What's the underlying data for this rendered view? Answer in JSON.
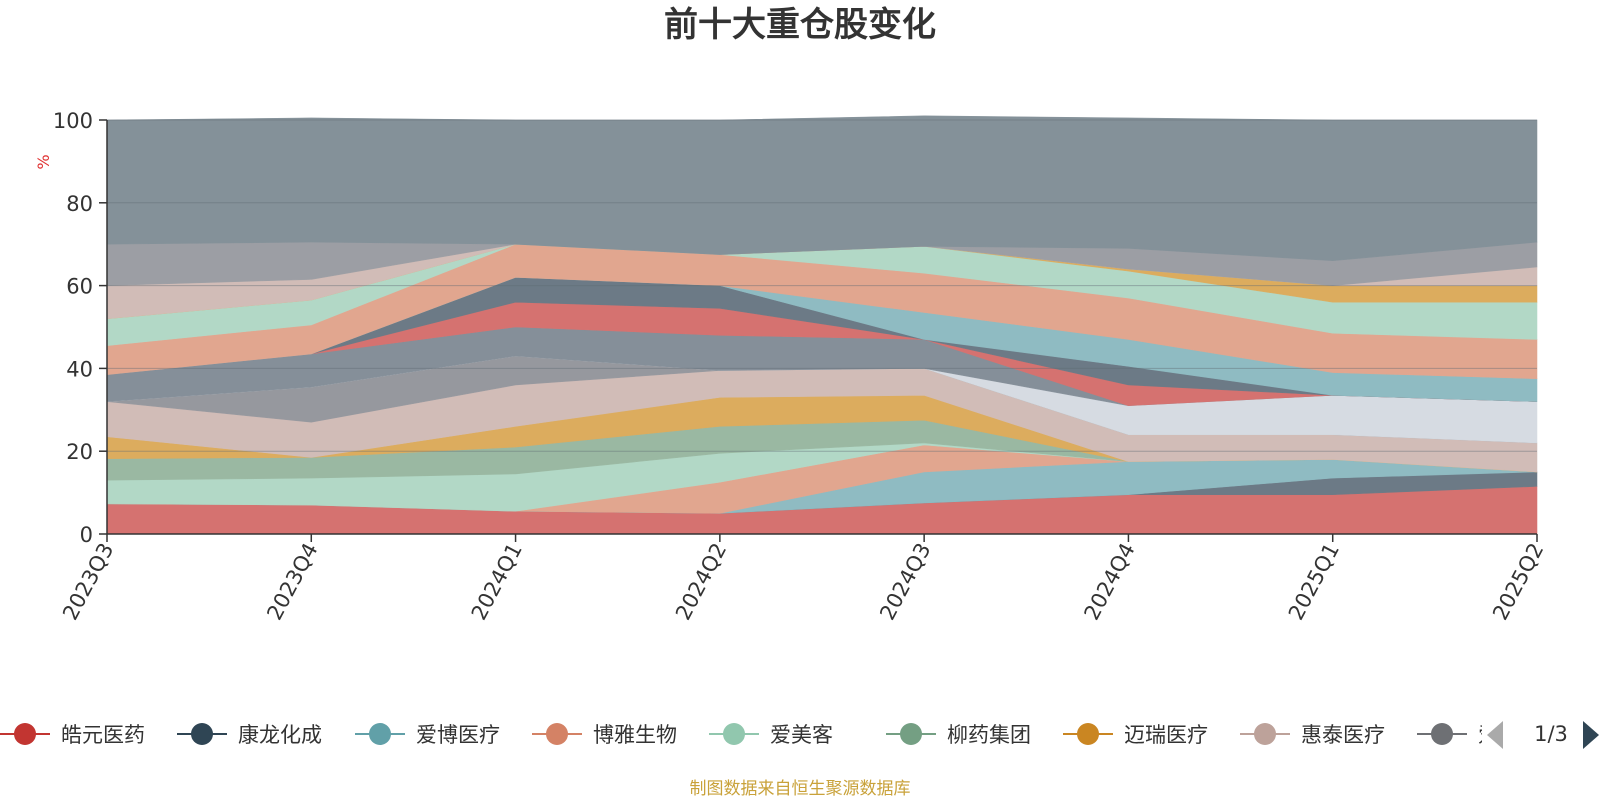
{
  "chart_data": {
    "type": "area",
    "stacked": true,
    "title": "前十大重仓股变化",
    "ylabel": "%",
    "ylim": [
      0,
      100
    ],
    "yticks": [
      0,
      20,
      40,
      60,
      80,
      100
    ],
    "grid": true,
    "categories": [
      "2023Q3",
      "2023Q4",
      "2024Q1",
      "2024Q2",
      "2024Q3",
      "2024Q4",
      "2025Q1",
      "2025Q2"
    ],
    "series": [
      {
        "name": "皓元医药",
        "color": "#d57270",
        "values": [
          7.3,
          7.0,
          5.5,
          5.0,
          7.5,
          9.5,
          9.5,
          11.5
        ]
      },
      {
        "name": "康龙化成",
        "color": "#6c7a86",
        "values": [
          0,
          0,
          0,
          0,
          0,
          0,
          4.0,
          3.5
        ]
      },
      {
        "name": "爱博医疗",
        "color": "#8fbbc2",
        "values": [
          0,
          0,
          0,
          0,
          7.5,
          8.0,
          4.5,
          0
        ]
      },
      {
        "name": "博雅生物",
        "color": "#e1a68f",
        "values": [
          0,
          0,
          0,
          7.5,
          6.5,
          0,
          0,
          0
        ]
      },
      {
        "name": "爱美客",
        "color": "#b2d8c6",
        "values": [
          5.7,
          6.5,
          9.0,
          7.0,
          0.5,
          0,
          0,
          0
        ]
      },
      {
        "name": "柳药集团",
        "color": "#9ab8a2",
        "values": [
          5.2,
          5.0,
          6.5,
          6.5,
          5.5,
          0,
          0,
          0
        ]
      },
      {
        "name": "迈瑞医疗",
        "color": "#dcac5e",
        "values": [
          5.3,
          0,
          5.0,
          7.0,
          6.0,
          0,
          0,
          0
        ]
      },
      {
        "name": "惠泰医疗",
        "color": "#d1bcb7",
        "values": [
          8.5,
          8.5,
          10.0,
          6.5,
          6.5,
          6.5,
          6.0,
          7.0
        ]
      },
      {
        "name": "爱尔眼科",
        "color": "#96989e",
        "values": [
          0,
          8.5,
          7.0,
          0,
          0,
          0,
          0,
          0
        ]
      },
      {
        "name": "",
        "color": "#d6dbe2",
        "values": [
          0,
          0,
          0,
          0,
          0,
          7.0,
          9.5,
          10.0
        ]
      },
      {
        "name": "",
        "color": "#858f99",
        "values": [
          6.5,
          8.0,
          7.0,
          8.5,
          7.0,
          0,
          0,
          0
        ]
      },
      {
        "name": "",
        "color": "#d57270",
        "values": [
          0,
          0,
          6.0,
          6.5,
          0,
          5.0,
          0,
          0
        ]
      },
      {
        "name": "",
        "color": "#6c7a86",
        "values": [
          0,
          0,
          6.0,
          5.5,
          0,
          4.5,
          0,
          0
        ]
      },
      {
        "name": "",
        "color": "#8fbbc2",
        "values": [
          0,
          0,
          0,
          0,
          6.5,
          6.5,
          5.5,
          5.5
        ]
      },
      {
        "name": "",
        "color": "#e1a68f",
        "values": [
          7.0,
          7.0,
          8.0,
          7.5,
          9.5,
          10.0,
          9.5,
          9.5
        ]
      },
      {
        "name": "",
        "color": "#b2d8c6",
        "values": [
          6.5,
          6.0,
          0,
          0,
          6.5,
          6.5,
          7.5,
          9.0
        ]
      },
      {
        "name": "",
        "color": "#dcac5e",
        "values": [
          0,
          0,
          0,
          0,
          0,
          0.5,
          4.0,
          4.0
        ]
      },
      {
        "name": "",
        "color": "#d1bcb7",
        "values": [
          8.0,
          5.0,
          0,
          0,
          0,
          0,
          0,
          4.5
        ]
      },
      {
        "name": "",
        "color": "#9c9ea4",
        "values": [
          10.0,
          9.0,
          0,
          0,
          0,
          5.0,
          6.0,
          6.0
        ]
      },
      {
        "name": "",
        "color": "#849199",
        "values": [
          30.0,
          30.0,
          30.0,
          32.5,
          31.5,
          31.5,
          34.0,
          29.5
        ]
      }
    ]
  },
  "legend": {
    "items": [
      {
        "name": "皓元医药",
        "color": "#c23531"
      },
      {
        "name": "康龙化成",
        "color": "#2f4554"
      },
      {
        "name": "爱博医疗",
        "color": "#61a0a8"
      },
      {
        "name": "博雅生物",
        "color": "#d48265"
      },
      {
        "name": "爱美客",
        "color": "#91c7ae"
      },
      {
        "name": "柳药集团",
        "color": "#749f83"
      },
      {
        "name": "迈瑞医疗",
        "color": "#ca8622"
      },
      {
        "name": "惠泰医疗",
        "color": "#bda29a"
      },
      {
        "name": "爱尔眼科",
        "color": "#6e7074"
      }
    ],
    "page_indicator": "1/3"
  },
  "source_note": "制图数据来自恒生聚源数据库"
}
